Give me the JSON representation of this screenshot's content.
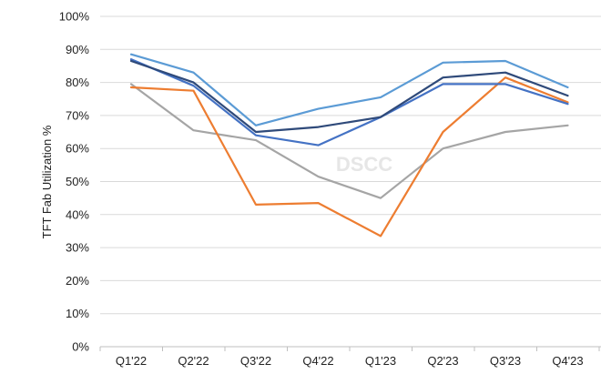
{
  "chart_data": {
    "type": "line",
    "ylabel": "TFT Fab Utilization %",
    "xlabel": "",
    "ylim": [
      0,
      100
    ],
    "yticks": [
      0,
      10,
      20,
      30,
      40,
      50,
      60,
      70,
      80,
      90,
      100
    ],
    "ytick_labels": [
      "0%",
      "10%",
      "20%",
      "30%",
      "40%",
      "50%",
      "60%",
      "70%",
      "80%",
      "90%",
      "100%"
    ],
    "categories": [
      "Q1'22",
      "Q2'22",
      "Q3'22",
      "Q4'22",
      "Q1'23",
      "Q2'23",
      "Q3'23",
      "Q4'23"
    ],
    "grid": true,
    "watermark": "DSCC",
    "series": [
      {
        "color": "#a5a5a5",
        "values": [
          79.5,
          65.5,
          62.5,
          51.5,
          45.0,
          60.0,
          65.0,
          67.0
        ]
      },
      {
        "color": "#ed7d31",
        "values": [
          78.5,
          77.5,
          43.0,
          43.5,
          33.5,
          65.0,
          81.5,
          74.0
        ]
      },
      {
        "color": "#5b9bd5",
        "values": [
          88.5,
          83.0,
          67.0,
          72.0,
          75.5,
          86.0,
          86.5,
          78.5
        ]
      },
      {
        "color": "#4472c4",
        "values": [
          87.0,
          79.0,
          64.0,
          61.0,
          69.5,
          79.5,
          79.5,
          73.5
        ]
      },
      {
        "color": "#2f4a7a",
        "values": [
          86.5,
          80.0,
          65.0,
          66.5,
          69.5,
          81.5,
          83.0,
          76.0
        ]
      }
    ]
  }
}
